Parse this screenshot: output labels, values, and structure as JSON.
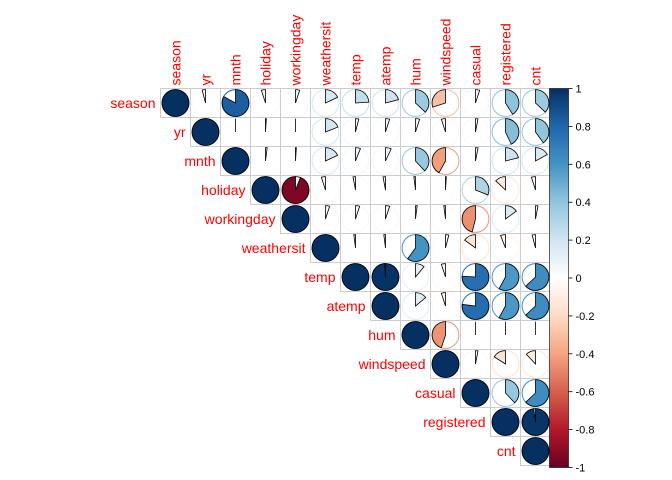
{
  "chart_data": {
    "type": "heatmap",
    "subtype": "correlation-pie-upper",
    "variables": [
      "season",
      "yr",
      "mnth",
      "holiday",
      "workingday",
      "weathersit",
      "temp",
      "atemp",
      "hum",
      "windspeed",
      "casual",
      "registered",
      "cnt"
    ],
    "matrix": [
      [
        1.0,
        -0.04,
        0.83,
        -0.05,
        0.05,
        0.18,
        0.24,
        0.21,
        0.37,
        -0.3,
        0.05,
        0.41,
        0.37
      ],
      [
        -0.04,
        1.0,
        0.0,
        0.01,
        0.0,
        0.19,
        0.04,
        0.05,
        0.05,
        -0.05,
        0.03,
        0.43,
        0.4
      ],
      [
        0.83,
        0.0,
        1.0,
        0.02,
        0.01,
        0.18,
        0.06,
        0.07,
        0.38,
        -0.42,
        0.03,
        0.21,
        0.17
      ],
      [
        -0.05,
        0.01,
        0.02,
        1.0,
        -0.94,
        -0.05,
        -0.03,
        -0.03,
        -0.02,
        0.01,
        0.31,
        -0.13,
        -0.05
      ],
      [
        0.05,
        0.0,
        0.01,
        -0.94,
        1.0,
        0.05,
        0.05,
        0.05,
        0.02,
        -0.02,
        -0.46,
        0.15,
        0.03
      ],
      [
        0.18,
        0.19,
        0.18,
        -0.05,
        0.05,
        1.0,
        -0.02,
        -0.02,
        0.6,
        0.04,
        -0.15,
        -0.06,
        -0.04
      ],
      [
        0.24,
        0.04,
        0.06,
        -0.03,
        0.05,
        -0.02,
        1.0,
        0.99,
        0.11,
        -0.05,
        0.76,
        0.58,
        0.63
      ],
      [
        0.21,
        0.05,
        0.07,
        -0.03,
        0.05,
        -0.02,
        0.99,
        1.0,
        0.14,
        -0.05,
        0.77,
        0.58,
        0.63
      ],
      [
        0.37,
        0.05,
        0.38,
        -0.02,
        0.02,
        0.6,
        0.11,
        0.14,
        1.0,
        -0.45,
        0.0,
        0.0,
        0.0
      ],
      [
        -0.3,
        -0.05,
        -0.42,
        0.01,
        -0.02,
        0.04,
        -0.05,
        -0.05,
        -0.45,
        1.0,
        0.03,
        -0.16,
        -0.12
      ],
      [
        0.05,
        0.03,
        0.03,
        0.31,
        -0.46,
        -0.15,
        0.76,
        0.77,
        0.0,
        0.03,
        1.0,
        0.38,
        0.63
      ],
      [
        0.41,
        0.43,
        0.21,
        -0.13,
        0.15,
        -0.06,
        0.58,
        0.58,
        0.0,
        -0.16,
        0.38,
        1.0,
        0.98
      ],
      [
        0.37,
        0.4,
        0.17,
        -0.05,
        0.03,
        -0.04,
        0.63,
        0.63,
        0.0,
        -0.12,
        0.63,
        0.98,
        1.0
      ]
    ],
    "colorbar": {
      "min": -1,
      "max": 1,
      "ticks": [
        "1",
        "0.8",
        "0.6",
        "0.4",
        "0.2",
        "0",
        "-0.2",
        "-0.4",
        "-0.6",
        "-0.8",
        "-1"
      ]
    },
    "colors": {
      "label": "#ff0000",
      "grid": "#cccccc",
      "stops": [
        "#67001f",
        "#b2182b",
        "#d6604d",
        "#f4a582",
        "#fddbc7",
        "#ffffff",
        "#d1e5f0",
        "#92c5de",
        "#4393c3",
        "#2166ac",
        "#053061"
      ]
    }
  }
}
